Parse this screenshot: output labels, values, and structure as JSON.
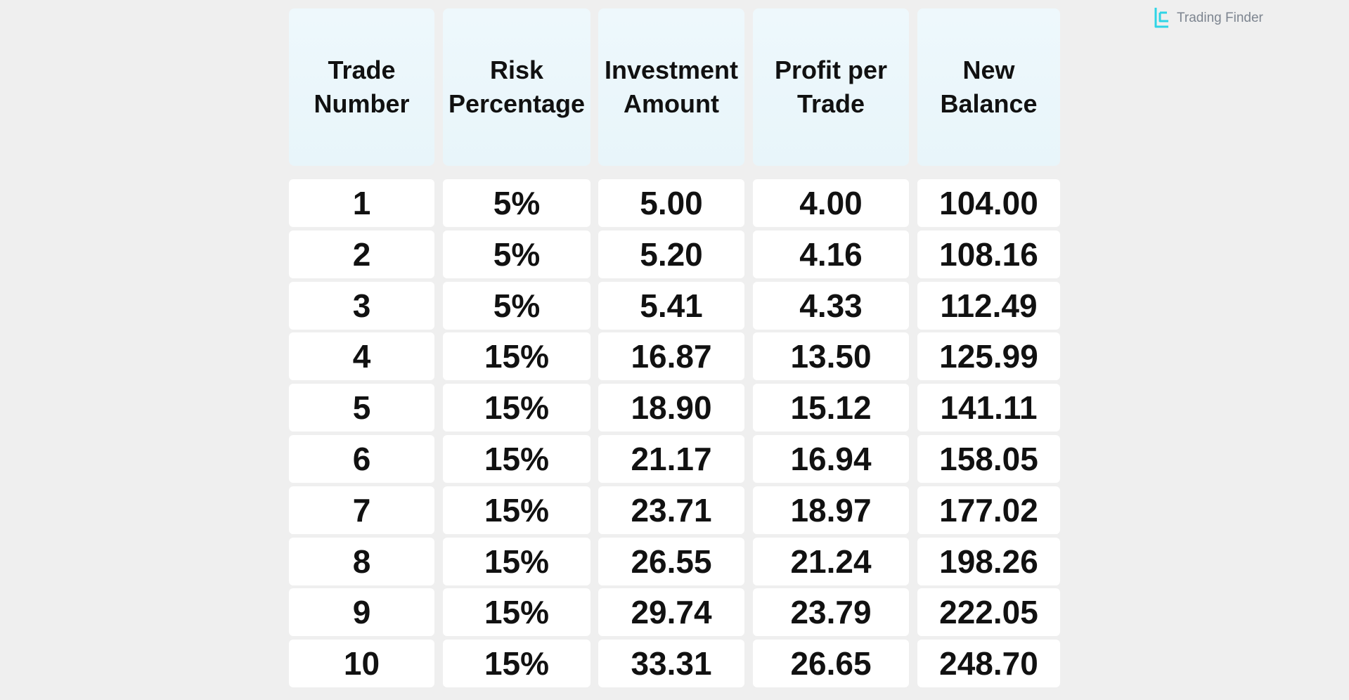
{
  "brand": "Trading Finder",
  "table": {
    "headers": [
      "Trade Number",
      "Risk Percentage",
      "Investment Amount",
      "Profit per Trade",
      "New Balance"
    ],
    "rows": [
      [
        "1",
        "5%",
        "5.00",
        "4.00",
        "104.00"
      ],
      [
        "2",
        "5%",
        "5.20",
        "4.16",
        "108.16"
      ],
      [
        "3",
        "5%",
        "5.41",
        "4.33",
        "112.49"
      ],
      [
        "4",
        "15%",
        "16.87",
        "13.50",
        "125.99"
      ],
      [
        "5",
        "15%",
        "18.90",
        "15.12",
        "141.11"
      ],
      [
        "6",
        "15%",
        "21.17",
        "16.94",
        "158.05"
      ],
      [
        "7",
        "15%",
        "23.71",
        "18.97",
        "177.02"
      ],
      [
        "8",
        "15%",
        "26.55",
        "21.24",
        "198.26"
      ],
      [
        "9",
        "15%",
        "29.74",
        "23.79",
        "222.05"
      ],
      [
        "10",
        "15%",
        "33.31",
        "26.65",
        "248.70"
      ]
    ]
  }
}
